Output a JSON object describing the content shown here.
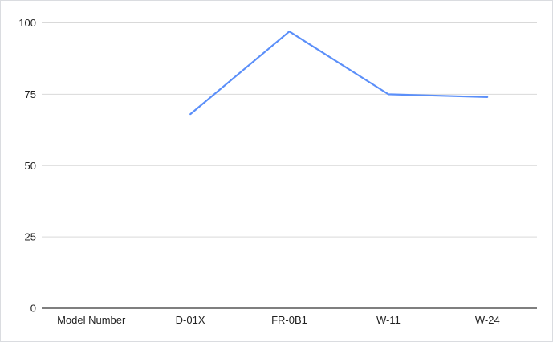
{
  "chart_data": {
    "type": "line",
    "title": "",
    "xlabel": "",
    "ylabel": "",
    "categories": [
      "Model Number",
      "D-01X",
      "FR-0B1",
      "W-11",
      "W-24"
    ],
    "series": [
      {
        "values": [
          null,
          68,
          97,
          75,
          74
        ],
        "color": "#5b8ff9"
      }
    ],
    "ylim": [
      0,
      100
    ],
    "yticks": [
      0,
      25,
      50,
      75,
      100
    ],
    "grid": true,
    "legend": "none"
  }
}
